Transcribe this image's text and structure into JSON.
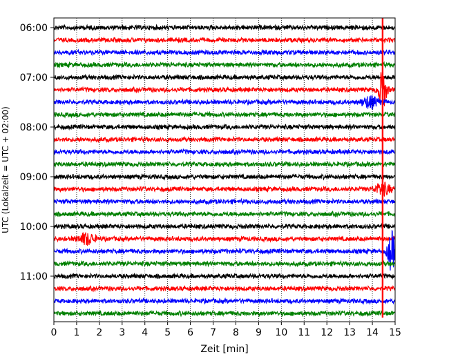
{
  "chart_data": {
    "type": "line",
    "title": "",
    "xlabel": "Zeit  [min]",
    "ylabel": "UTC (Lokalzeit = UTC + 02:00)",
    "xlim": [
      0,
      15
    ],
    "xticks": [
      0,
      1,
      2,
      3,
      4,
      5,
      6,
      7,
      8,
      9,
      10,
      11,
      12,
      13,
      14,
      15
    ],
    "grid": "vertical dotted lines at each minute",
    "legend": "none",
    "row_interval_minutes": 15,
    "start_time": "06:00",
    "ytick_labels": [
      "06:00",
      "07:00",
      "08:00",
      "09:00",
      "10:00",
      "11:00"
    ],
    "colors": [
      "#000000",
      "#ff0000",
      "#0000ff",
      "#008000"
    ],
    "trace_count": 24,
    "events": [
      {
        "row_start": "07:15",
        "minute": 14.45,
        "color": "#ff0000",
        "description": "large amplitude burst"
      },
      {
        "row_start": "07:30",
        "minute": 13.9,
        "color": "#0000ff",
        "description": "moderate burst"
      },
      {
        "row_start": "10:15",
        "minute": 1.45,
        "color": "#ff0000",
        "description": "moderate burst"
      },
      {
        "row_start": "10:30",
        "minute": 14.85,
        "color": "#0000ff",
        "description": "large amplitude burst"
      },
      {
        "row_start": "09:15",
        "minute": 14.45,
        "color": "#ff0000",
        "description": "vertical spike"
      }
    ]
  }
}
